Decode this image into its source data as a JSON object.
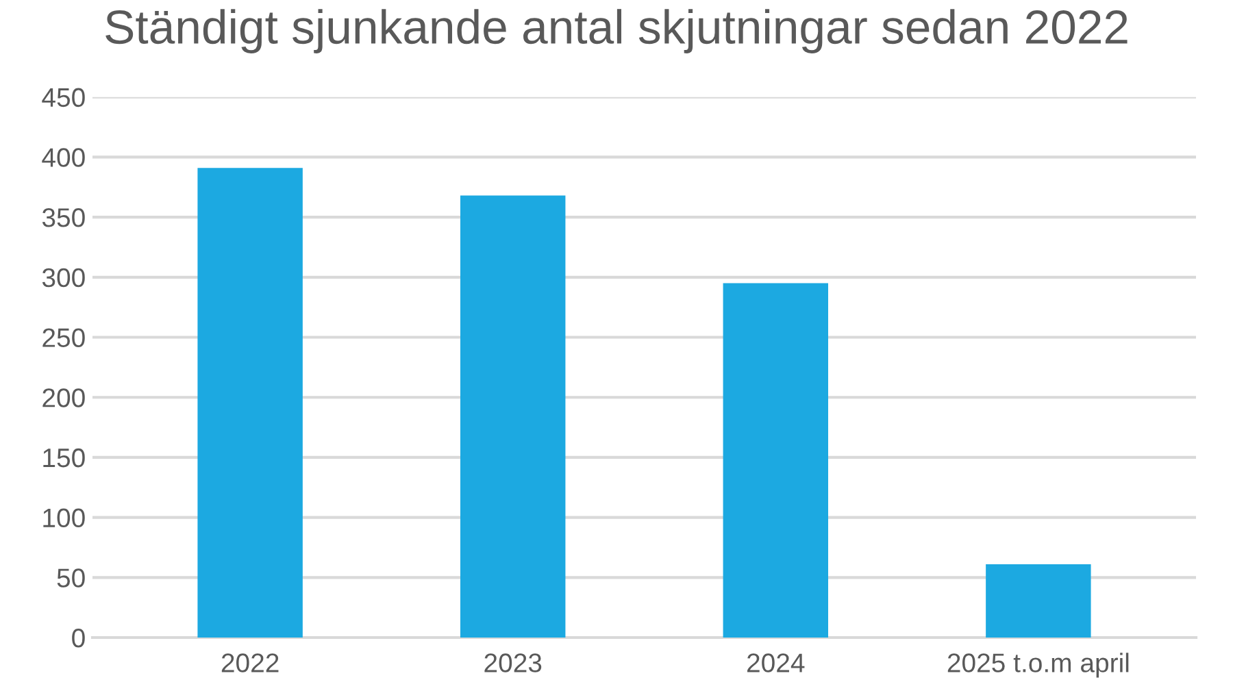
{
  "chart_data": {
    "type": "bar",
    "title": "Ständigt sjunkande antal skjutningar sedan 2022",
    "categories": [
      "2022",
      "2023",
      "2024",
      "2025 t.o.m april"
    ],
    "values": [
      391,
      368,
      295,
      61
    ],
    "color": "#1ca9e1",
    "ylim": [
      0,
      450
    ],
    "yticks": [
      0,
      50,
      100,
      150,
      200,
      250,
      300,
      350,
      400,
      450
    ],
    "grid": "y",
    "legend": false
  }
}
